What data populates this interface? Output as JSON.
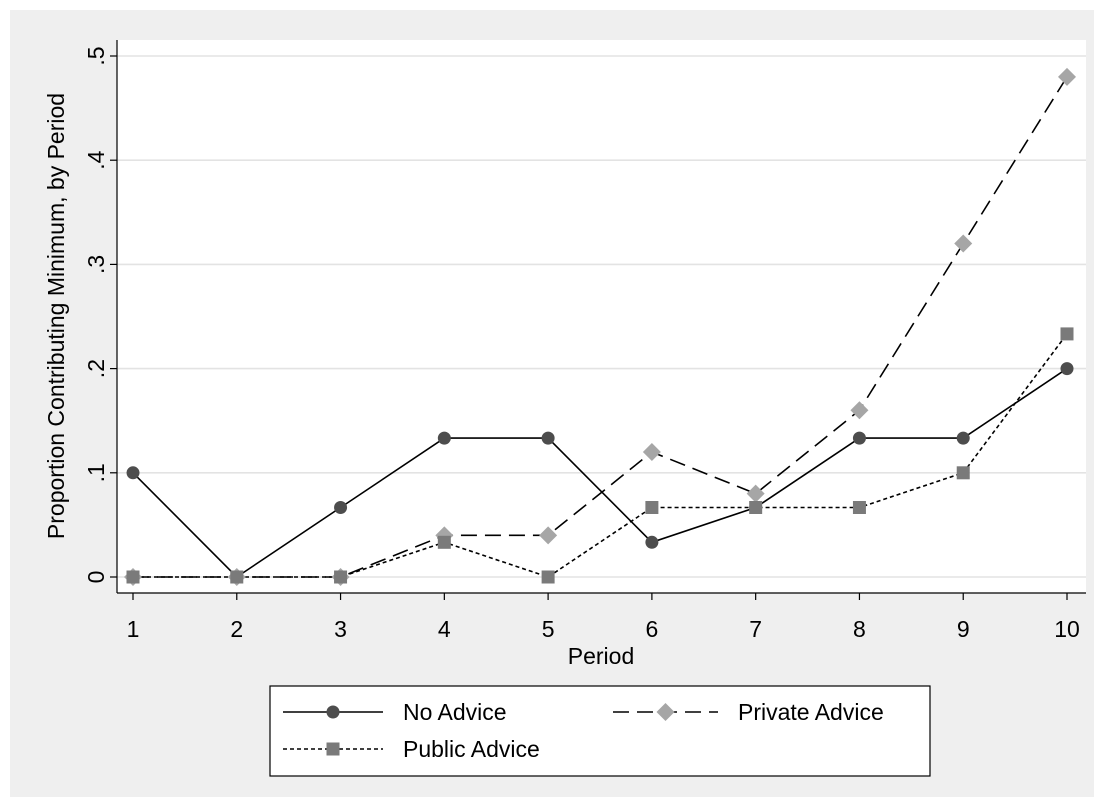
{
  "chart_data": {
    "type": "line",
    "xlabel": "Period",
    "ylabel": "Proportion Contributing Minimum, by Period",
    "x": [
      1,
      2,
      3,
      4,
      5,
      6,
      7,
      8,
      9,
      10
    ],
    "xlim": [
      1,
      10
    ],
    "ylim": [
      0,
      0.5
    ],
    "x_ticks": [
      "1",
      "2",
      "3",
      "4",
      "5",
      "6",
      "7",
      "8",
      "9",
      "10"
    ],
    "y_ticks": [
      "0",
      ".1",
      ".2",
      ".3",
      ".4",
      ".5"
    ],
    "grid": "horizontal",
    "legend_position": "bottom",
    "series": [
      {
        "name": "No Advice",
        "values": [
          0.1,
          0,
          0.0667,
          0.1333,
          0.1333,
          0.0333,
          0.0667,
          0.1333,
          0.1333,
          0.2
        ],
        "color": "#4d4d4d",
        "line": "solid",
        "marker": "circle"
      },
      {
        "name": "Private Advice",
        "values": [
          0,
          0,
          0,
          0.04,
          0.04,
          0.12,
          0.08,
          0.16,
          0.32,
          0.48
        ],
        "color": "#a6a6a6",
        "line": "longdash",
        "marker": "diamond"
      },
      {
        "name": "Public Advice",
        "values": [
          0,
          0,
          0,
          0.0333,
          0,
          0.0667,
          0.0667,
          0.0667,
          0.1,
          0.2333
        ],
        "color": "#7a7a7a",
        "line": "dotted",
        "marker": "square"
      }
    ]
  }
}
